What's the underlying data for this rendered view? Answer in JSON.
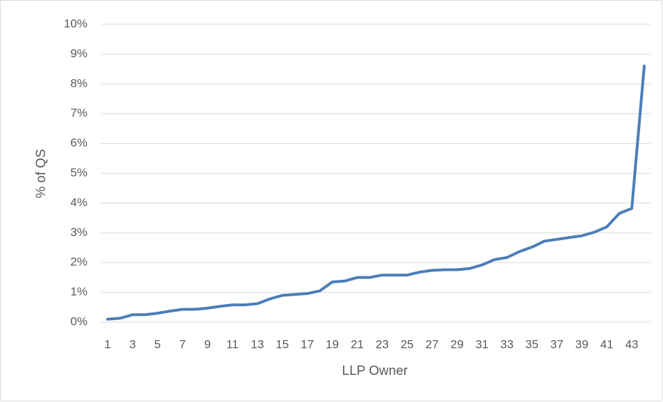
{
  "chart_data": {
    "type": "line",
    "x_label": "LLP Owner",
    "y_label": "% of QS",
    "categories": [
      1,
      null,
      3,
      null,
      5,
      null,
      7,
      null,
      9,
      null,
      11,
      null,
      13,
      null,
      15,
      null,
      17,
      null,
      19,
      null,
      21,
      null,
      23,
      null,
      25,
      null,
      27,
      null,
      29,
      null,
      31,
      null,
      33,
      null,
      35,
      null,
      37,
      null,
      39,
      null,
      41,
      null,
      43,
      null
    ],
    "series": [
      {
        "name": "% of QS",
        "color": "#4a7ebb",
        "values": [
          0.1,
          0.13,
          0.25,
          0.25,
          0.3,
          0.37,
          0.43,
          0.43,
          0.47,
          0.53,
          0.58,
          0.58,
          0.62,
          0.78,
          0.9,
          0.93,
          0.96,
          1.05,
          1.35,
          1.38,
          1.5,
          1.5,
          1.58,
          1.58,
          1.58,
          1.68,
          1.74,
          1.76,
          1.76,
          1.8,
          1.92,
          2.1,
          2.17,
          2.37,
          2.52,
          2.72,
          2.78,
          2.84,
          2.9,
          3.02,
          3.2,
          3.65,
          3.82,
          8.6
        ]
      }
    ],
    "ylim": [
      0,
      10
    ],
    "yticks": [
      {
        "value": 0,
        "label": "0%"
      },
      {
        "value": 1,
        "label": "1%"
      },
      {
        "value": 2,
        "label": "2%"
      },
      {
        "value": 3,
        "label": "3%"
      },
      {
        "value": 4,
        "label": "4%"
      },
      {
        "value": 5,
        "label": "5%"
      },
      {
        "value": 6,
        "label": "6%"
      },
      {
        "value": 7,
        "label": "7%"
      },
      {
        "value": 8,
        "label": "8%"
      },
      {
        "value": 9,
        "label": "9%"
      },
      {
        "value": 10,
        "label": "10%"
      }
    ],
    "grid": true
  }
}
